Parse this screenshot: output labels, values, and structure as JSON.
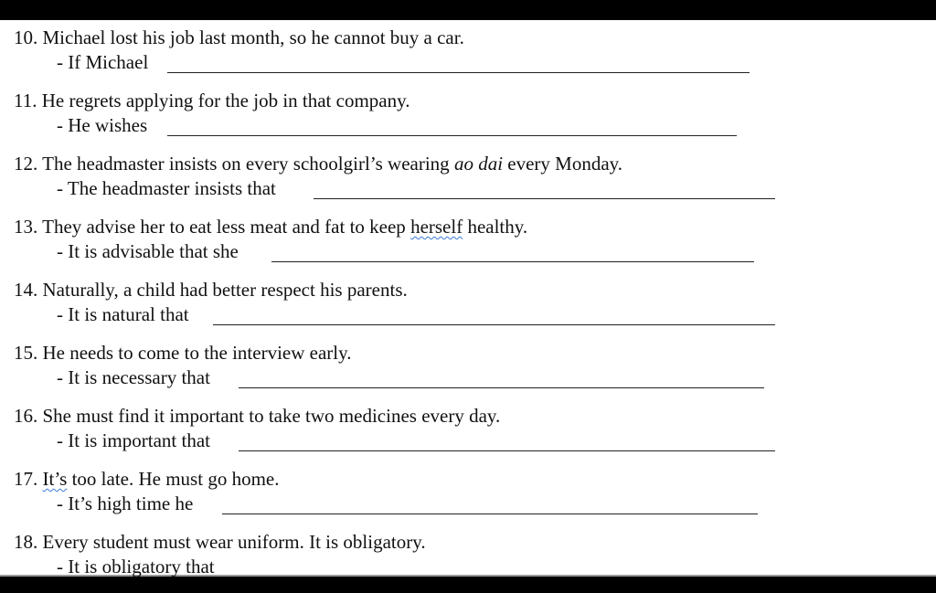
{
  "exercises": [
    {
      "number": "10.",
      "question": "Michael lost his job last month, so he cannot buy a car.",
      "prompt": "- If Michael"
    },
    {
      "number": "11.",
      "question": "He regrets applying for the job in that company.",
      "prompt": "- He wishes"
    },
    {
      "number": "12.",
      "question_before": "The headmaster insists on every schoolgirl’s wearing ",
      "question_italic": "ao dai",
      "question_after": " every Monday.",
      "prompt": "- The headmaster insists that"
    },
    {
      "number": "13.",
      "question_before": "They advise her to eat less meat and fat to keep ",
      "question_flagged": "herself",
      "question_after": " healthy.",
      "prompt": "- It is advisable that she"
    },
    {
      "number": "14.",
      "question": " Naturally, a child had better respect his parents.",
      "prompt": "- It is natural that"
    },
    {
      "number": "15.",
      "question": "He needs to come to the interview early.",
      "prompt": "- It is necessary that"
    },
    {
      "number": "16.",
      "question": "She must find it important to take two medicines every day.",
      "prompt": "- It is important that"
    },
    {
      "number": "17.",
      "question_flagged": "It’s",
      "question_after": " too late. He must go home.",
      "prompt": "- It’s high time he"
    },
    {
      "number": "18.",
      "question": "Every student must wear uniform. It is obligatory.",
      "prompt": "- It is obligatory that"
    }
  ]
}
